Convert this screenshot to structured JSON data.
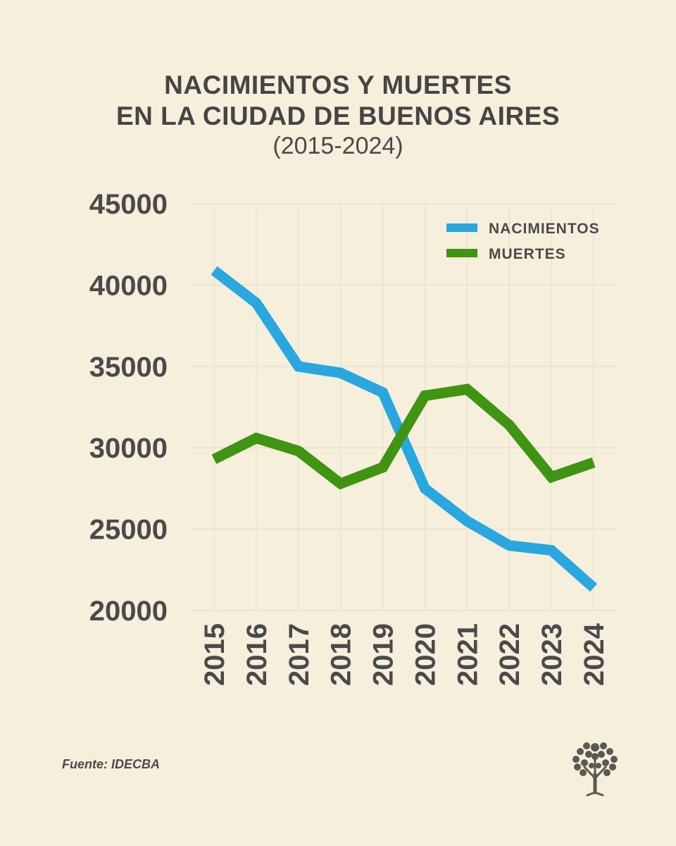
{
  "title_line1": "NACIMIENTOS Y MUERTES",
  "title_line2": "EN LA CIUDAD DE BUENOS AIRES",
  "subtitle": "(2015-2024)",
  "source": "Fuente: IDECBA",
  "logo_icon": "tree-icon",
  "colors": {
    "background": "#f6efdc",
    "nacimientos": "#29a8e0",
    "muertes": "#3f9411",
    "text": "#4a4a4a",
    "grid": "#e6dfcc"
  },
  "chart_data": {
    "type": "line",
    "title": "NACIMIENTOS Y MUERTES EN LA CIUDAD DE BUENOS AIRES",
    "subtitle": "(2015-2024)",
    "xlabel": "",
    "ylabel": "",
    "categories": [
      "2015",
      "2016",
      "2017",
      "2018",
      "2019",
      "2020",
      "2021",
      "2022",
      "2023",
      "2024"
    ],
    "ylim": [
      20000,
      45000
    ],
    "yticks": [
      "20000",
      "25000",
      "30000",
      "35000",
      "40000",
      "45000"
    ],
    "grid": true,
    "legend_position": "top-right",
    "series": [
      {
        "name": "NACIMIENTOS",
        "color": "#29a8e0",
        "values": [
          40900,
          38900,
          35000,
          34600,
          33400,
          27500,
          25500,
          24000,
          23700,
          21400
        ]
      },
      {
        "name": "MUERTES",
        "color": "#3f9411",
        "values": [
          29300,
          30600,
          29800,
          27800,
          28800,
          33200,
          33600,
          31400,
          28200,
          29100
        ]
      }
    ]
  }
}
